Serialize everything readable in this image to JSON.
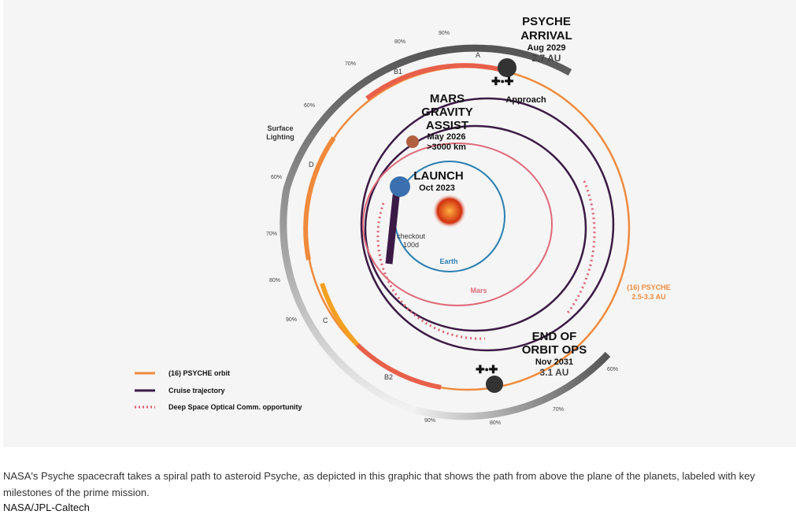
{
  "diagram": {
    "arrival": {
      "title1": "PSYCHE",
      "title2": "ARRIVAL",
      "date": "Aug 2029",
      "au": "2.7 AU"
    },
    "approach": "Approach",
    "mars_assist": {
      "l1": "MARS",
      "l2": "GRAVITY",
      "l3": "ASSIST",
      "date": "May 2026",
      "dist": ">3000 km"
    },
    "launch": {
      "title": "LAUNCH",
      "date": "Oct 2023"
    },
    "checkout": {
      "l1": "checkout",
      "l2": "100d"
    },
    "earth": "Earth",
    "mars": "Mars",
    "psyche_orbit": {
      "l1": "(16) PSYCHE",
      "l2": "2.5-3.3 AU"
    },
    "end": {
      "l1": "END OF",
      "l2": "ORBIT OPS",
      "date": "Nov 2031",
      "au": "3.1 AU"
    },
    "surface_lighting": {
      "l1": "Surface",
      "l2": "Lighting"
    },
    "phases": [
      "A",
      "B1",
      "D",
      "C",
      "B2"
    ],
    "percents": [
      "90%",
      "80%",
      "70%",
      "60%",
      "60%",
      "70%",
      "80%",
      "90%",
      "90%",
      "80%",
      "70%",
      "60%"
    ],
    "legend": [
      "(16) PSYCHE orbit",
      "Cruise trajectory",
      "Deep Space Optical Comm. opportunity"
    ],
    "colors": {
      "psyche": "#f08a3c",
      "cruise": "#3b1a45",
      "optical": "#e06070",
      "earth": "#2a7fb0",
      "mars": "#e06a78"
    }
  },
  "caption": "NASA's Psyche spacecraft takes a spiral path to asteroid Psyche, as depicted in this graphic that shows the path from above the plane of the planets, labeled with key milestones of the prime mission.",
  "credit": "NASA/JPL-Caltech"
}
